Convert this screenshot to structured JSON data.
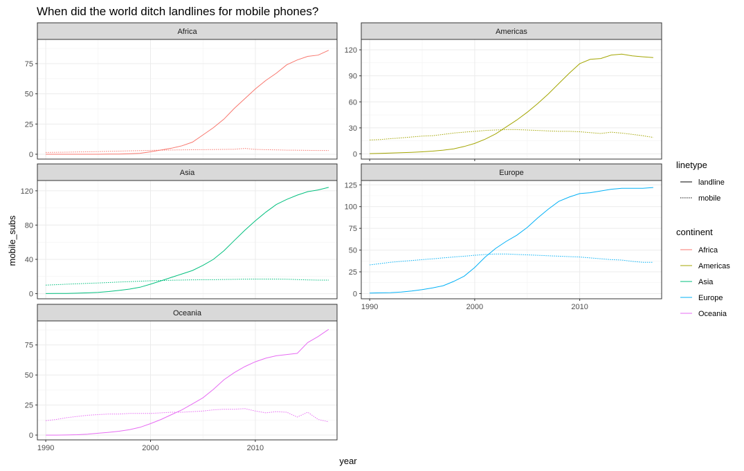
{
  "chart_data": {
    "type": "line",
    "title": "When did the world ditch landlines for mobile phones?",
    "xlabel": "year",
    "ylabel": "mobile_subs",
    "x_ticks": [
      1990,
      2000,
      2010
    ],
    "xlim": [
      1989.2,
      2017.8
    ],
    "grid": true,
    "legend_placement": "right",
    "legends": {
      "linetype": {
        "title": "linetype",
        "entries": [
          "landline",
          "mobile"
        ]
      },
      "continent": {
        "title": "continent",
        "entries": [
          "Africa",
          "Americas",
          "Asia",
          "Europe",
          "Oceania"
        ]
      }
    },
    "colors": {
      "Africa": "#F8766D",
      "Americas": "#A3A500",
      "Asia": "#00BF7D",
      "Europe": "#00B0F6",
      "Oceania": "#E76BF3"
    },
    "x": [
      1990,
      1991,
      1992,
      1993,
      1994,
      1995,
      1996,
      1997,
      1998,
      1999,
      2000,
      2001,
      2002,
      2003,
      2004,
      2005,
      2006,
      2007,
      2008,
      2009,
      2010,
      2011,
      2012,
      2013,
      2014,
      2015,
      2016,
      2017
    ],
    "facets": [
      {
        "name": "Africa",
        "ylim": [
          -4,
          95
        ],
        "y_ticks": [
          0,
          25,
          50,
          75
        ],
        "series": [
          {
            "linetype": "landline",
            "values": [
              0,
              0,
              0,
              0,
              0,
              0,
              0.1,
              0.2,
              0.4,
              0.8,
              2,
              3.5,
              5,
              7,
              10,
              16,
              22,
              29,
              38,
              46,
              54,
              61,
              67,
              74,
              78,
              81,
              82,
              86
            ]
          },
          {
            "linetype": "mobile",
            "values": [
              1.5,
              1.6,
              1.7,
              1.9,
              2.0,
              2.2,
              2.4,
              2.6,
              2.8,
              3.0,
              3.2,
              3.4,
              3.5,
              3.6,
              3.7,
              3.8,
              3.9,
              4.0,
              4.1,
              4.8,
              4.0,
              3.8,
              3.6,
              3.4,
              3.3,
              3.2,
              3.1,
              3.1
            ]
          }
        ]
      },
      {
        "name": "Americas",
        "ylim": [
          -6,
          132
        ],
        "y_ticks": [
          0,
          30,
          60,
          90,
          120
        ],
        "series": [
          {
            "linetype": "landline",
            "values": [
              0.3,
              0.6,
              0.9,
              1.3,
              1.8,
              2.4,
              3.2,
              4.3,
              5.8,
              8.5,
              12,
              17,
              23,
              31,
              39,
              48,
              58,
              69,
              81,
              93,
              104,
              109,
              110,
              114,
              115,
              113,
              112,
              111
            ]
          },
          {
            "linetype": "mobile",
            "values": [
              16,
              16.5,
              17.5,
              18.5,
              19.5,
              20.5,
              21,
              22.5,
              24,
              25,
              26,
              27,
              27.5,
              28,
              28,
              27.5,
              27,
              26.5,
              26,
              26,
              25.5,
              24.5,
              23.5,
              25,
              24,
              22.5,
              21,
              19
            ]
          }
        ]
      },
      {
        "name": "Asia",
        "ylim": [
          -6,
          132
        ],
        "y_ticks": [
          0,
          40,
          80,
          120
        ],
        "series": [
          {
            "linetype": "landline",
            "values": [
              0.1,
              0.2,
              0.3,
              0.5,
              0.9,
              1.5,
              2.5,
              3.8,
              5.3,
              7.5,
              11,
              15,
              19,
              23,
              27,
              33,
              40,
              50,
              62,
              74,
              85,
              95,
              104,
              110,
              115,
              119,
              121,
              124
            ]
          },
          {
            "linetype": "mobile",
            "values": [
              10,
              10.5,
              11,
              11.5,
              12,
              12.5,
              13,
              13.5,
              14,
              14.5,
              15,
              15.3,
              15.6,
              15.9,
              16.1,
              16.2,
              16.3,
              16.5,
              16.7,
              16.9,
              17,
              17,
              17,
              16.8,
              16.4,
              16,
              15.8,
              15.8
            ]
          }
        ]
      },
      {
        "name": "Europe",
        "ylim": [
          -6,
          130
        ],
        "y_ticks": [
          0,
          25,
          50,
          75,
          100,
          125
        ],
        "series": [
          {
            "linetype": "landline",
            "values": [
              0.5,
              0.8,
              1.1,
              1.8,
              3,
              4.5,
              6.5,
              9,
              14,
              20,
              30,
              42,
              52,
              60,
              67,
              76,
              87,
              97,
              106,
              111,
              115,
              116,
              118,
              120,
              121,
              121,
              121,
              122
            ]
          },
          {
            "linetype": "mobile",
            "values": [
              33,
              34.5,
              36,
              37,
              38,
              39,
              40,
              41,
              42,
              43,
              44,
              45,
              45.5,
              45.5,
              45,
              44.5,
              44,
              43.5,
              43,
              42.5,
              42,
              41,
              40,
              39,
              38.5,
              37,
              36,
              36
            ]
          }
        ]
      },
      {
        "name": "Oceania",
        "ylim": [
          -4,
          95
        ],
        "y_ticks": [
          0,
          25,
          50,
          75
        ],
        "series": [
          {
            "linetype": "landline",
            "values": [
              0,
              0,
              0.1,
              0.3,
              0.8,
              1.5,
              2.3,
              3.2,
              4.5,
              6.5,
              9.5,
              13,
              17,
              21,
              26,
              31,
              38,
              46,
              52,
              57,
              61,
              64,
              66,
              67,
              68,
              77,
              82,
              88
            ]
          },
          {
            "linetype": "mobile",
            "values": [
              12,
              13,
              14.5,
              15.5,
              16.5,
              17,
              17.5,
              17.5,
              18,
              18,
              18,
              18.5,
              19,
              19,
              19.5,
              20,
              21,
              21.5,
              21.5,
              22,
              20,
              18.5,
              19.5,
              19,
              15,
              19,
              13,
              11
            ]
          }
        ]
      }
    ]
  }
}
